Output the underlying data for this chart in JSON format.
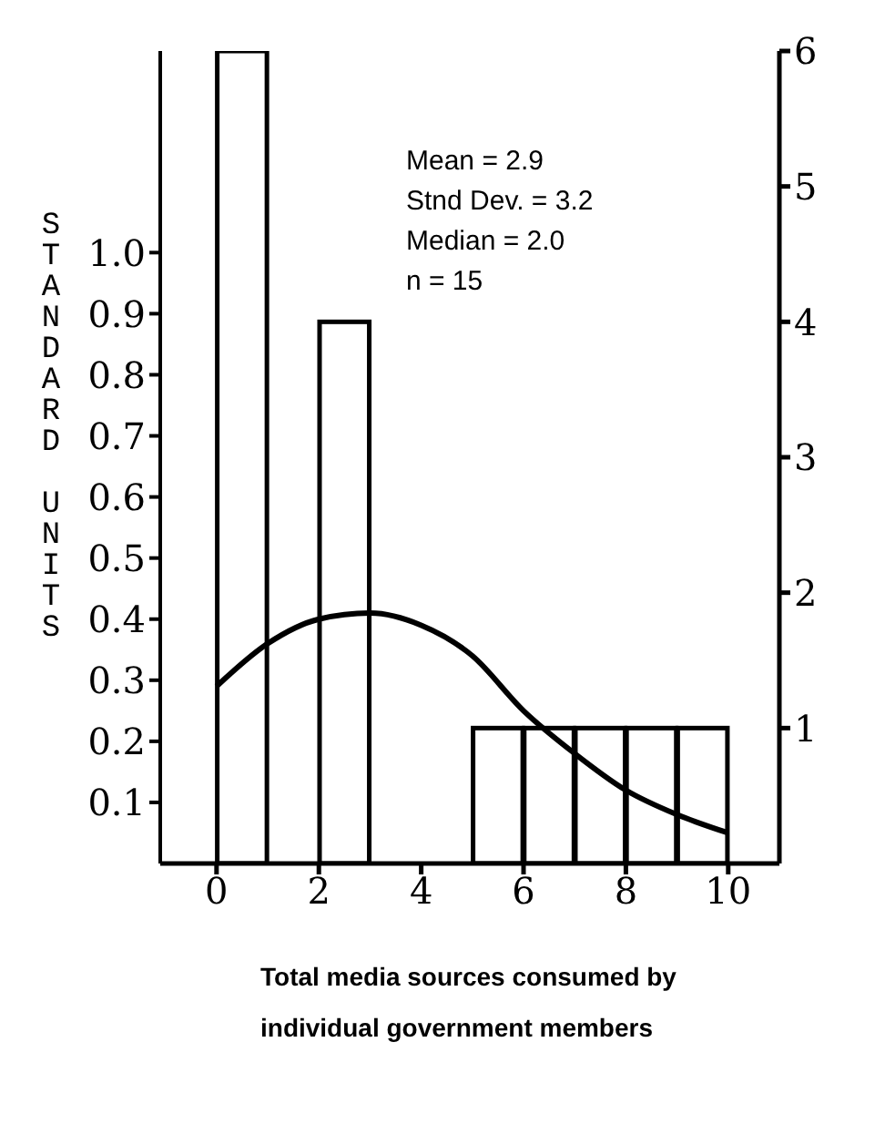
{
  "chart_data": {
    "type": "histogram",
    "xlabel": "Total media sources consumed by individual government members",
    "ylabel": "STANDARD UNITS",
    "annotations": [
      "Mean = 2.9",
      "Stnd Dev. = 3.2",
      "Median = 2.0",
      "n = 15"
    ],
    "xlim": [
      -1.1,
      11
    ],
    "xticks": [
      0,
      2,
      4,
      6,
      8,
      10
    ],
    "ylim": [
      0,
      1.33
    ],
    "yticks": [
      0.1,
      0.2,
      0.3,
      0.4,
      0.5,
      0.6,
      0.7,
      0.8,
      0.9,
      {
        "value": 1,
        "label": "1.0"
      }
    ],
    "y2lim": [
      0,
      6
    ],
    "y2ticks": [
      1,
      2,
      3,
      4,
      5,
      6
    ],
    "series": [
      {
        "axis": "y2",
        "color": "#ffffff",
        "bins": [
          0,
          1,
          2,
          3,
          4,
          5,
          6,
          7,
          8,
          9,
          10
        ],
        "values": [
          6,
          0,
          4,
          0,
          0,
          1,
          1,
          1,
          1,
          1
        ]
      },
      {
        "type": "line",
        "color": "#000000",
        "x": [
          0,
          1,
          2,
          3,
          4,
          5,
          6,
          7,
          8,
          9,
          10
        ],
        "values": [
          0.29,
          0.36,
          0.4,
          0.41,
          0.39,
          0.34,
          0.25,
          0.18,
          0.12,
          0.08,
          0.05
        ]
      }
    ]
  }
}
